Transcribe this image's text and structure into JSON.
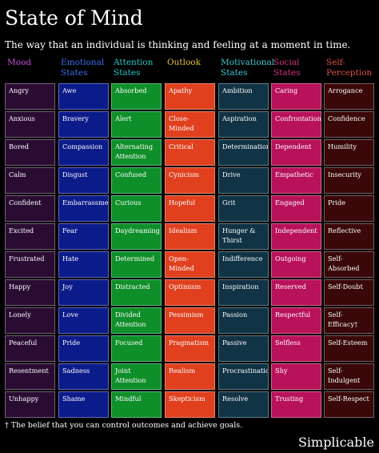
{
  "title": "State of Mind",
  "subtitle": "The way that an individual is thinking and feeling at a moment in time.",
  "watermark": "Simplicable",
  "footnote": "† The belief that you can control outcomes and achieve goals.",
  "brand": "Simplicable",
  "columns": [
    {
      "header": "Mood",
      "header_color": "#c94bdc",
      "cell_color": "#2a0c33",
      "cells": [
        "Angry",
        "Anxious",
        "Bored",
        "Calm",
        "Confident",
        "Excited",
        "Frustrated",
        "Happy",
        "Lonely",
        "Peaceful",
        "Resentment",
        "Unhappy"
      ]
    },
    {
      "header": "Emotional States",
      "header_color": "#3b6ff0",
      "cell_color": "#0c1b8a",
      "cells": [
        "Awe",
        "Bravery",
        "Compassion",
        "Disgust",
        "Embarrassment",
        "Fear",
        "Hate",
        "Joy",
        "Love",
        "Pride",
        "Sadness",
        "Shame"
      ]
    },
    {
      "header": "Attention States",
      "header_color": "#22c8c8",
      "cell_color": "#0f8f2a",
      "cells": [
        "Absorbed",
        "Alert",
        "Alternating Attention",
        "Confused",
        "Curious",
        "Daydreaming",
        "Determined",
        "Distracted",
        "Divided Attention",
        "Focused",
        "Joint Attention",
        "Mindful"
      ]
    },
    {
      "header": "Outlook",
      "header_color": "#e8c53a",
      "cell_color": "#e0401e",
      "cells": [
        "Apathy",
        "Close-Minded",
        "Critical",
        "Cynicism",
        "Hopeful",
        "Idealism",
        "Open-Minded",
        "Optimism",
        "Pessimism",
        "Pragmatism",
        "Realism",
        "Skepticism"
      ]
    },
    {
      "header": "Motivational States",
      "header_color": "#3cc7d6",
      "cell_color": "#103345",
      "cells": [
        "Ambition",
        "Aspiration",
        "Determination",
        "Drive",
        "Grit",
        "Hunger & Thirst",
        "Indifference",
        "Inspiration",
        "Passion",
        "Passive",
        "Procrastination",
        "Resolve"
      ]
    },
    {
      "header": "Social States",
      "header_color": "#d8307c",
      "cell_color": "#b8125a",
      "cells": [
        "Caring",
        "Confrontational",
        "Dependent",
        "Empathetic",
        "Engaged",
        "Independent",
        "Outgoing",
        "Reserved",
        "Respectful",
        "Selfless",
        "Shy",
        "Trusting"
      ]
    },
    {
      "header": "Self-Perception",
      "header_color": "#e0504a",
      "cell_color": "#3a0808",
      "cells": [
        "Arrogance",
        "Confidence",
        "Humility",
        "Insecurity",
        "Pride",
        "Reflective",
        "Self-Absorbed",
        "Self-Doubt",
        "Self-Efficacy†",
        "Self-Esteem",
        "Self-Indulgent",
        "Self-Respect"
      ]
    }
  ]
}
